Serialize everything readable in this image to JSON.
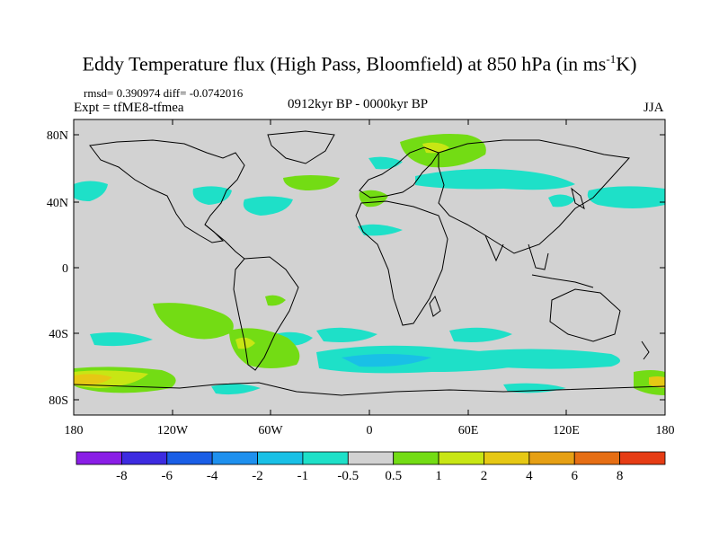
{
  "title": {
    "main": "Eddy Temperature flux (High Pass, Bloomfield) at 850 hPa (in ms",
    "sup": "-1",
    "tail": "K)"
  },
  "stats": "rmsd= 0.390974 diff= -0.0742016",
  "experiment": "Expt = tfME8-tfmea",
  "period": "0912kyr BP - 0000kyr BP",
  "season": "JJA",
  "axes": {
    "lat_labels": [
      "80N",
      "40N",
      "0",
      "40S",
      "80S"
    ],
    "lon_labels": [
      "180",
      "120W",
      "60W",
      "0",
      "60E",
      "120E",
      "180"
    ]
  },
  "colorbar": {
    "colors": [
      "#8a1ee6",
      "#3d2be0",
      "#1a5ee6",
      "#1e90ee",
      "#19c0e6",
      "#1ee0c8",
      "#d2d2d2",
      "#73dc14",
      "#c8e614",
      "#e6c814",
      "#e6a014",
      "#e66e14",
      "#e63c14"
    ],
    "labels": [
      "-8",
      "-6",
      "-4",
      "-2",
      "-1",
      "-0.5",
      "0.5",
      "1",
      "2",
      "4",
      "6",
      "8"
    ]
  },
  "colors": {
    "background_field": "#d2d2d2",
    "coast": "#000000"
  }
}
